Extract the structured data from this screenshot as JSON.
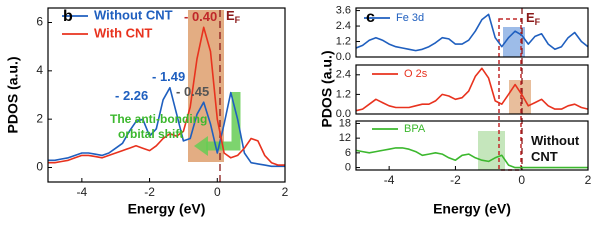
{
  "chart_data": [
    {
      "type": "line",
      "panel": "b",
      "xlabel": "Energy (eV)",
      "ylabel": "PDOS (a.u.)",
      "x": [
        -5.0,
        -4.8,
        -4.6,
        -4.4,
        -4.2,
        -4.0,
        -3.8,
        -3.6,
        -3.4,
        -3.2,
        -3.0,
        -2.8,
        -2.6,
        -2.4,
        -2.2,
        -2.0,
        -1.8,
        -1.6,
        -1.4,
        -1.2,
        -1.0,
        -0.8,
        -0.6,
        -0.4,
        -0.2,
        0.0,
        0.2,
        0.4,
        0.6,
        0.8,
        1.0,
        1.2,
        1.4,
        1.6,
        1.8,
        2.0
      ],
      "series": [
        {
          "name": "Without CNT",
          "color": "#1f5fbf",
          "values": [
            0.3,
            0.3,
            0.35,
            0.4,
            0.5,
            0.6,
            0.6,
            0.55,
            0.5,
            0.6,
            0.8,
            1.0,
            1.5,
            1.9,
            2.0,
            1.3,
            1.6,
            2.8,
            3.3,
            2.2,
            1.1,
            1.2,
            2.2,
            2.7,
            1.8,
            0.6,
            1.8,
            3.1,
            2.0,
            0.6,
            0.2,
            0.15,
            0.1,
            0.05,
            0.05,
            0.05
          ]
        },
        {
          "name": "With CNT",
          "color": "#e8321e",
          "values": [
            0.2,
            0.2,
            0.25,
            0.3,
            0.4,
            0.5,
            0.5,
            0.45,
            0.4,
            0.5,
            0.6,
            0.7,
            0.8,
            0.9,
            0.8,
            0.7,
            0.9,
            1.2,
            1.4,
            1.3,
            1.5,
            2.5,
            4.5,
            5.8,
            4.8,
            2.0,
            0.6,
            0.4,
            0.5,
            0.8,
            1.2,
            1.1,
            0.5,
            0.2,
            0.1,
            0.1
          ]
        }
      ],
      "xlim": [
        -5,
        2
      ],
      "xticks": [
        -4,
        -2,
        0,
        2
      ],
      "ylim": [
        -0.6,
        6.6
      ],
      "yticks": [
        0,
        2,
        4,
        6
      ],
      "annotations": [
        {
          "text": "- 0.40",
          "color": "#c0282a"
        },
        {
          "text": "E",
          "sub": "F",
          "color": "#8b1a1a"
        },
        {
          "text": "- 1.49",
          "color": "#1f5fbf"
        },
        {
          "text": "- 2.26",
          "color": "#1f5fbf"
        },
        {
          "text": "- 0.45",
          "color": "#555555"
        },
        {
          "text": "The anti-bonding",
          "color": "#3cb82e"
        },
        {
          "text": "orbital shift",
          "color": "#3cb82e"
        }
      ]
    },
    {
      "type": "line",
      "panel": "c",
      "x": [
        -5.0,
        -4.8,
        -4.6,
        -4.4,
        -4.2,
        -4.0,
        -3.8,
        -3.6,
        -3.4,
        -3.2,
        -3.0,
        -2.8,
        -2.6,
        -2.4,
        -2.2,
        -2.0,
        -1.8,
        -1.6,
        -1.4,
        -1.2,
        -1.0,
        -0.8,
        -0.6,
        -0.4,
        -0.2,
        0.0,
        0.2,
        0.4,
        0.6,
        0.8,
        1.0,
        1.2,
        1.4,
        1.6,
        1.8,
        2.0
      ],
      "series": [
        {
          "name": "Fe 3d",
          "color": "#1f5fbf",
          "values": [
            0.7,
            0.9,
            1.3,
            1.5,
            1.3,
            1.0,
            0.8,
            0.7,
            0.6,
            0.5,
            0.6,
            0.8,
            1.1,
            1.5,
            1.4,
            1.0,
            1.0,
            1.3,
            2.0,
            2.9,
            3.3,
            1.5,
            0.8,
            1.5,
            2.0,
            1.7,
            1.0,
            1.6,
            1.8,
            1.0,
            0.6,
            0.8,
            1.5,
            1.9,
            1.2,
            0.8
          ]
        }
      ],
      "xlim": [
        -5,
        2
      ],
      "ylim": [
        0,
        3.8
      ],
      "yticks": [
        {
          "value": 0,
          "label": "0.0"
        },
        1.2,
        2.4,
        3.6
      ],
      "annotations": [
        {
          "text": "E",
          "sub": "F",
          "color": "#8b1a1a"
        }
      ]
    },
    {
      "type": "line",
      "ylabel": "PDOS (a.u.)",
      "x": [
        -5.0,
        -4.8,
        -4.6,
        -4.4,
        -4.2,
        -4.0,
        -3.8,
        -3.6,
        -3.4,
        -3.2,
        -3.0,
        -2.8,
        -2.6,
        -2.4,
        -2.2,
        -2.0,
        -1.8,
        -1.6,
        -1.4,
        -1.2,
        -1.0,
        -0.8,
        -0.6,
        -0.4,
        -0.2,
        0.0,
        0.2,
        0.4,
        0.6,
        0.8,
        1.0,
        1.2,
        1.4,
        1.6,
        1.8,
        2.0
      ],
      "series": [
        {
          "name": "O 2s",
          "color": "#e8321e",
          "values": [
            0.2,
            0.3,
            0.6,
            0.9,
            0.7,
            0.5,
            0.4,
            0.4,
            0.4,
            0.5,
            0.6,
            0.6,
            0.8,
            1.2,
            1.1,
            0.9,
            1.0,
            1.4,
            2.3,
            2.8,
            2.2,
            0.8,
            0.6,
            1.2,
            1.8,
            1.2,
            0.5,
            0.7,
            0.9,
            0.5,
            0.3,
            0.3,
            0.5,
            0.6,
            0.4,
            0.3
          ]
        }
      ],
      "xlim": [
        -5,
        2
      ],
      "ylim": [
        0,
        3.0
      ],
      "yticks": [
        {
          "value": 0,
          "label": "0.0"
        },
        1.2,
        2.4
      ]
    },
    {
      "type": "line",
      "xlabel": "Energy (eV)",
      "x": [
        -5.0,
        -4.8,
        -4.6,
        -4.4,
        -4.2,
        -4.0,
        -3.8,
        -3.6,
        -3.4,
        -3.2,
        -3.0,
        -2.8,
        -2.6,
        -2.4,
        -2.2,
        -2.0,
        -1.8,
        -1.6,
        -1.4,
        -1.2,
        -1.0,
        -0.8,
        -0.6,
        -0.4,
        -0.2,
        0.0,
        0.2,
        0.4,
        0.6,
        0.8,
        1.0,
        1.2,
        1.4,
        1.6,
        1.8,
        2.0
      ],
      "series": [
        {
          "name": "BPA",
          "color": "#3cb82e",
          "values": [
            7,
            6.5,
            6,
            6.5,
            7,
            7.5,
            8,
            8,
            7.5,
            6.5,
            5,
            5.5,
            6,
            5.5,
            4,
            3,
            5,
            5.5,
            4,
            3,
            2.5,
            4,
            5,
            1,
            0,
            0,
            0,
            0,
            0,
            0,
            0,
            0,
            0,
            0,
            0,
            0
          ]
        }
      ],
      "xlim": [
        -5,
        2
      ],
      "xticks": [
        -4,
        -2,
        0,
        2
      ],
      "ylim": [
        -1,
        19
      ],
      "yticks": [
        0,
        6,
        12,
        18
      ],
      "annotations": [
        {
          "text": "Without",
          "color": "#111111"
        },
        {
          "text": "CNT",
          "color": "#111111"
        }
      ]
    }
  ]
}
